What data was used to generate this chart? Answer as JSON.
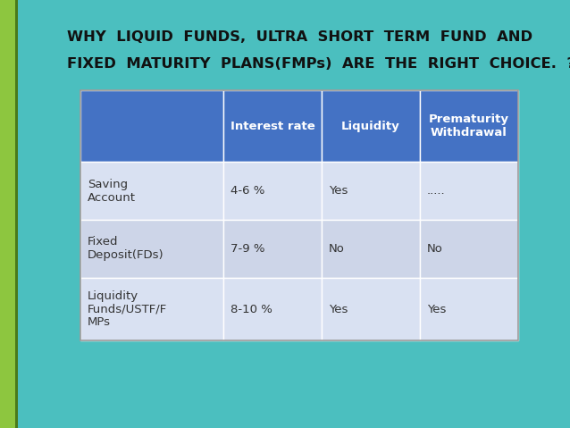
{
  "title_line1": "WHY  LIQUID  FUNDS,  ULTRA  SHORT  TERM  FUND  AND",
  "title_line2": "FIXED  MATURITY  PLANS(FMPs)  ARE  THE  RIGHT  CHOICE.  ?",
  "background_color": "#4BBFBF",
  "left_bar_color": "#8DC63F",
  "left_bar_border_color": "#5A8A20",
  "header_bg_color": "#4472C4",
  "row_bg_even": "#CDD5E8",
  "row_bg_odd": "#D9E1F2",
  "cell_border_color": "#FFFFFF",
  "header_text_color": "#FFFFFF",
  "body_text_color": "#333333",
  "title_text_color": "#111111",
  "col_headers": [
    "",
    "Interest rate",
    "Liquidity",
    "Prematurity\nWithdrawal"
  ],
  "rows": [
    [
      "Saving\nAccount",
      "4-6 %",
      "Yes",
      "....."
    ],
    [
      "Fixed\nDeposit(FDs)",
      "7-9 %",
      "No",
      "No"
    ],
    [
      "Liquidity\nFunds/USTF/F\nMPs",
      "8-10 %",
      "Yes",
      "Yes"
    ]
  ],
  "figsize": [
    6.38,
    4.79
  ],
  "dpi": 100
}
